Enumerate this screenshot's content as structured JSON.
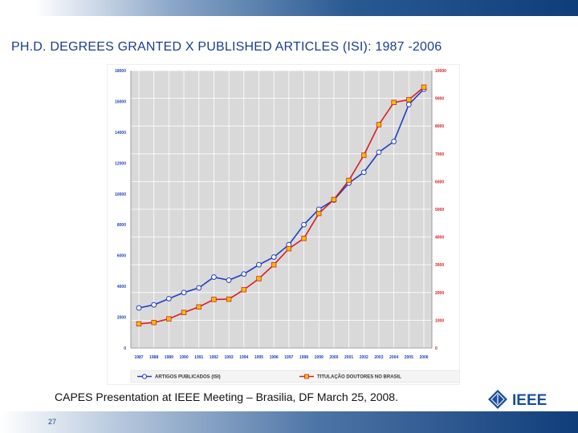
{
  "slide": {
    "title": "PH.D. DEGREES GRANTED X PUBLISHED ARTICLES (ISI): 1987 -2006",
    "caption": "CAPES Presentation at IEEE Meeting – Brasilia, DF March 25, 2008.",
    "page_number": "27",
    "logo_text": "IEEE"
  },
  "chart_data": {
    "type": "line",
    "title": "",
    "xlabel": "",
    "ylabel": "",
    "x": [
      "1987",
      "1988",
      "1989",
      "1990",
      "1991",
      "1992",
      "1993",
      "1994",
      "1995",
      "1996",
      "1997",
      "1998",
      "1999",
      "2000",
      "2001",
      "2002",
      "2003",
      "2004",
      "2005",
      "2006"
    ],
    "y_left_lim": [
      0,
      18000
    ],
    "y_left_ticks": [
      "0",
      "2000",
      "4000",
      "6000",
      "8000",
      "10000",
      "12000",
      "14000",
      "16000",
      "18000"
    ],
    "y_right_lim": [
      0,
      10000
    ],
    "y_right_ticks": [
      "0",
      "1000",
      "2000",
      "3000",
      "4000",
      "5000",
      "6000",
      "7000",
      "8000",
      "9000",
      "10000"
    ],
    "grid": true,
    "legend_position": "bottom",
    "series": [
      {
        "name": "ARTIGOS PUBLICADOS (ISI)",
        "axis": "left",
        "color": "#1f3fbf",
        "marker": "circle",
        "values": [
          2600,
          2800,
          3200,
          3600,
          3900,
          4600,
          4400,
          4800,
          5400,
          5900,
          6700,
          8000,
          9000,
          9600,
          10700,
          11400,
          12700,
          13400,
          15800,
          16800
        ]
      },
      {
        "name": "TITULAÇÃO DOUTORES NO BRASIL",
        "axis": "right",
        "color": "#d42020",
        "marker": "square",
        "values": [
          870,
          920,
          1050,
          1280,
          1480,
          1750,
          1760,
          2100,
          2500,
          3000,
          3580,
          3950,
          4850,
          5350,
          6040,
          6950,
          8050,
          8850,
          8950,
          9400
        ]
      }
    ]
  }
}
